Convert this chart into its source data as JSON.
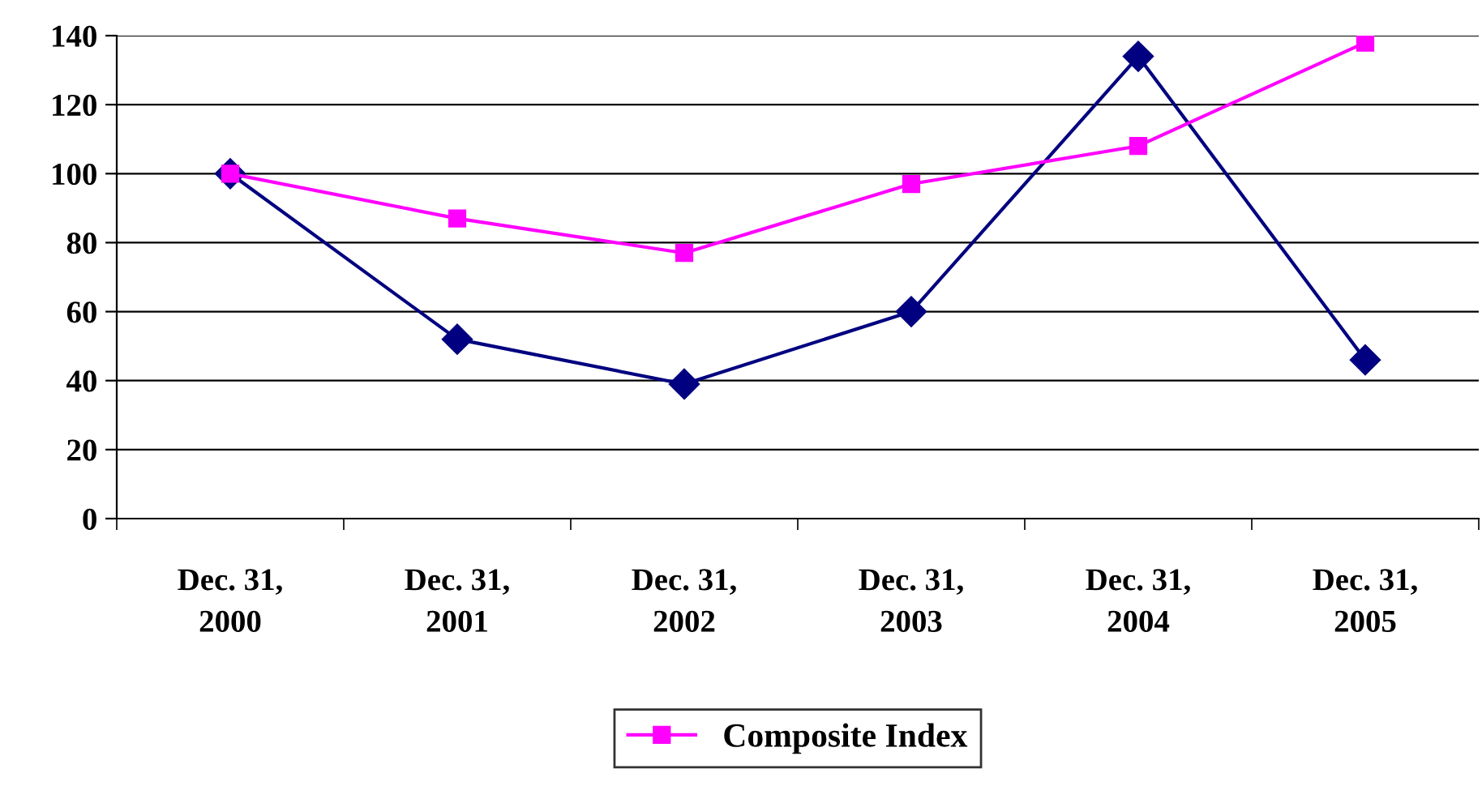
{
  "chart_data": {
    "type": "line",
    "categories": [
      "Dec. 31,\n2000",
      "Dec. 31,\n2001",
      "Dec. 31,\n2002",
      "Dec. 31,\n2003",
      "Dec. 31,\n2004",
      "Dec. 31,\n2005"
    ],
    "series": [
      {
        "color": "#000080",
        "marker": "diamond",
        "values": [
          100,
          52,
          39,
          60,
          134,
          46
        ]
      },
      {
        "name": "Composite Index",
        "color": "#ff00ff",
        "marker": "square",
        "values": [
          100,
          87,
          77,
          97,
          108,
          138
        ]
      }
    ],
    "ylim": [
      0,
      140
    ],
    "yticks": [
      0,
      20,
      40,
      60,
      80,
      100,
      120,
      140
    ],
    "grid": "y",
    "legend": "bottom",
    "line_style": "solid"
  }
}
